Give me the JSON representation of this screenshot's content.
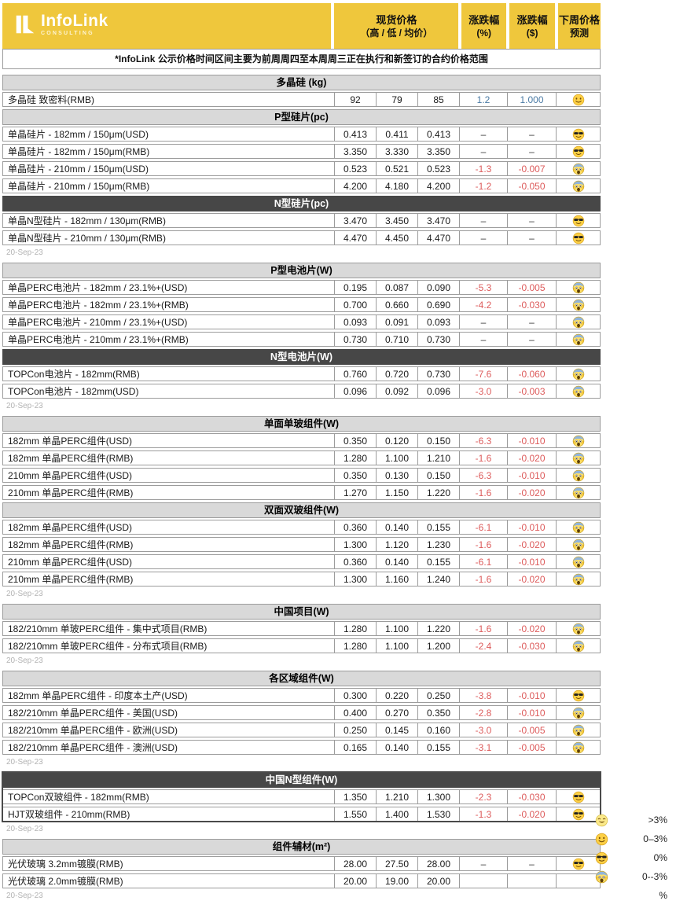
{
  "colors": {
    "brand_yellow": "#EFC73C",
    "light_header": "#D9D9D9",
    "dark_header": "#474747",
    "border": "#9C9C9C",
    "positive_blue": "#4A7AA4",
    "negative_red": "#DD5C5C",
    "date_gray": "#B3B3B3"
  },
  "header": {
    "logo": {
      "brand": "InfoLink",
      "sub": "CONSULTING"
    },
    "columns": {
      "spot_l1": "现货价格",
      "spot_l2": "（高 / 低 / 均价）",
      "pct_l1": "涨跌幅",
      "pct_l2": "(%)",
      "usd_l1": "涨跌幅",
      "usd_l2": "($)",
      "forecast_l1": "下周价格",
      "forecast_l2": "预测"
    },
    "note": "*InfoLink 公示价格时间区间主要为前周周四至本周周三正在执行和新签订的合约价格范围"
  },
  "groups": [
    {
      "date": "20-Sep-23",
      "sections": [
        {
          "title": "多晶硅 (kg)",
          "style": "light",
          "rows": [
            {
              "label": "多晶硅 致密料(RMB)",
              "high": "92",
              "low": "79",
              "avg": "85",
              "pct": "1.2",
              "usd": "1.000",
              "forecast": "smile"
            }
          ]
        },
        {
          "title": "P型硅片(pc)",
          "style": "light",
          "rows": [
            {
              "label": "单晶硅片 - 182mm / 150μm(USD)",
              "high": "0.413",
              "low": "0.411",
              "avg": "0.413",
              "pct": "–",
              "usd": "–",
              "forecast": "shades"
            },
            {
              "label": "单晶硅片 - 182mm / 150μm(RMB)",
              "high": "3.350",
              "low": "3.330",
              "avg": "3.350",
              "pct": "–",
              "usd": "–",
              "forecast": "shades"
            },
            {
              "label": "单晶硅片 - 210mm / 150μm(USD)",
              "high": "0.523",
              "low": "0.521",
              "avg": "0.523",
              "pct": "-1.3",
              "usd": "-0.007",
              "forecast": "scream"
            },
            {
              "label": "单晶硅片 - 210mm / 150μm(RMB)",
              "high": "4.200",
              "low": "4.180",
              "avg": "4.200",
              "pct": "-1.2",
              "usd": "-0.050",
              "forecast": "scream"
            }
          ]
        },
        {
          "title": "N型硅片(pc)",
          "style": "dark",
          "rows": [
            {
              "label": "单晶N型硅片 - 182mm / 130μm(RMB)",
              "high": "3.470",
              "low": "3.450",
              "avg": "3.470",
              "pct": "–",
              "usd": "–",
              "forecast": "shades"
            },
            {
              "label": "单晶N型硅片 - 210mm / 130μm(RMB)",
              "high": "4.470",
              "low": "4.450",
              "avg": "4.470",
              "pct": "–",
              "usd": "–",
              "forecast": "shades"
            }
          ]
        }
      ]
    },
    {
      "date": "20-Sep-23",
      "sections": [
        {
          "title": "P型电池片(W)",
          "style": "light",
          "rows": [
            {
              "label": "单晶PERC电池片 - 182mm / 23.1%+(USD)",
              "high": "0.195",
              "low": "0.087",
              "avg": "0.090",
              "pct": "-5.3",
              "usd": "-0.005",
              "forecast": "scream"
            },
            {
              "label": "单晶PERC电池片 - 182mm / 23.1%+(RMB)",
              "high": "0.700",
              "low": "0.660",
              "avg": "0.690",
              "pct": "-4.2",
              "usd": "-0.030",
              "forecast": "scream"
            },
            {
              "label": "单晶PERC电池片 - 210mm / 23.1%+(USD)",
              "high": "0.093",
              "low": "0.091",
              "avg": "0.093",
              "pct": "–",
              "usd": "–",
              "forecast": "scream"
            },
            {
              "label": "单晶PERC电池片 - 210mm / 23.1%+(RMB)",
              "high": "0.730",
              "low": "0.710",
              "avg": "0.730",
              "pct": "–",
              "usd": "–",
              "forecast": "scream"
            }
          ]
        },
        {
          "title": "N型电池片(W)",
          "style": "dark",
          "rows": [
            {
              "label": "TOPCon电池片 - 182mm(RMB)",
              "high": "0.760",
              "low": "0.720",
              "avg": "0.730",
              "pct": "-7.6",
              "usd": "-0.060",
              "forecast": "scream"
            },
            {
              "label": "TOPCon电池片 - 182mm(USD)",
              "high": "0.096",
              "low": "0.092",
              "avg": "0.096",
              "pct": "-3.0",
              "usd": "-0.003",
              "forecast": "scream"
            }
          ]
        }
      ]
    },
    {
      "date": "20-Sep-23",
      "sections": [
        {
          "title": "单面单玻组件(W)",
          "style": "light",
          "rows": [
            {
              "label": "182mm 单晶PERC组件(USD)",
              "high": "0.350",
              "low": "0.120",
              "avg": "0.150",
              "pct": "-6.3",
              "usd": "-0.010",
              "forecast": "scream"
            },
            {
              "label": "182mm 单晶PERC组件(RMB)",
              "high": "1.280",
              "low": "1.100",
              "avg": "1.210",
              "pct": "-1.6",
              "usd": "-0.020",
              "forecast": "scream"
            },
            {
              "label": "210mm 单晶PERC组件(USD)",
              "high": "0.350",
              "low": "0.130",
              "avg": "0.150",
              "pct": "-6.3",
              "usd": "-0.010",
              "forecast": "scream"
            },
            {
              "label": "210mm 单晶PERC组件(RMB)",
              "high": "1.270",
              "low": "1.150",
              "avg": "1.220",
              "pct": "-1.6",
              "usd": "-0.020",
              "forecast": "scream"
            }
          ]
        },
        {
          "title": "双面双玻组件(W)",
          "style": "light",
          "rows": [
            {
              "label": "182mm 单晶PERC组件(USD)",
              "high": "0.360",
              "low": "0.140",
              "avg": "0.155",
              "pct": "-6.1",
              "usd": "-0.010",
              "forecast": "scream"
            },
            {
              "label": "182mm 单晶PERC组件(RMB)",
              "high": "1.300",
              "low": "1.120",
              "avg": "1.230",
              "pct": "-1.6",
              "usd": "-0.020",
              "forecast": "scream"
            },
            {
              "label": "210mm 单晶PERC组件(USD)",
              "high": "0.360",
              "low": "0.140",
              "avg": "0.155",
              "pct": "-6.1",
              "usd": "-0.010",
              "forecast": "scream"
            },
            {
              "label": "210mm 单晶PERC组件(RMB)",
              "high": "1.300",
              "low": "1.160",
              "avg": "1.240",
              "pct": "-1.6",
              "usd": "-0.020",
              "forecast": "scream"
            }
          ]
        }
      ]
    },
    {
      "date": "20-Sep-23",
      "sections": [
        {
          "title": "中国项目(W)",
          "style": "light",
          "rows": [
            {
              "label": "182/210mm 单玻PERC组件 - 集中式项目(RMB)",
              "high": "1.280",
              "low": "1.100",
              "avg": "1.220",
              "pct": "-1.6",
              "usd": "-0.020",
              "forecast": "scream"
            },
            {
              "label": "182/210mm 单玻PERC组件 - 分布式项目(RMB)",
              "high": "1.280",
              "low": "1.100",
              "avg": "1.200",
              "pct": "-2.4",
              "usd": "-0.030",
              "forecast": "scream"
            }
          ]
        }
      ]
    },
    {
      "date": "20-Sep-23",
      "sections": [
        {
          "title": "各区域组件(W)",
          "style": "light",
          "rows": [
            {
              "label": "182mm 单晶PERC组件 - 印度本土产(USD)",
              "high": "0.300",
              "low": "0.220",
              "avg": "0.250",
              "pct": "-3.8",
              "usd": "-0.010",
              "forecast": "shades"
            },
            {
              "label": "182/210mm 单晶PERC组件 - 美国(USD)",
              "high": "0.400",
              "low": "0.270",
              "avg": "0.350",
              "pct": "-2.8",
              "usd": "-0.010",
              "forecast": "scream"
            },
            {
              "label": "182/210mm 单晶PERC组件 - 欧洲(USD)",
              "high": "0.250",
              "low": "0.145",
              "avg": "0.160",
              "pct": "-3.0",
              "usd": "-0.005",
              "forecast": "scream"
            },
            {
              "label": "182/210mm 单晶PERC组件 - 澳洲(USD)",
              "high": "0.165",
              "low": "0.140",
              "avg": "0.155",
              "pct": "-3.1",
              "usd": "-0.005",
              "forecast": "scream"
            }
          ]
        }
      ]
    },
    {
      "date": "20-Sep-23",
      "emphasis": true,
      "sections": [
        {
          "title": "中国N型组件(W)",
          "style": "dark",
          "rows": [
            {
              "label": "TOPCon双玻组件 - 182mm(RMB)",
              "high": "1.350",
              "low": "1.210",
              "avg": "1.300",
              "pct": "-2.3",
              "usd": "-0.030",
              "forecast": "shades"
            },
            {
              "label": "HJT双玻组件 - 210mm(RMB)",
              "high": "1.550",
              "low": "1.400",
              "avg": "1.530",
              "pct": "-1.3",
              "usd": "-0.020",
              "forecast": "shades"
            }
          ]
        }
      ]
    },
    {
      "date": "20-Sep-23",
      "sections": [
        {
          "title": "组件辅材(m²)",
          "style": "light",
          "rows": [
            {
              "label": "光伏玻璃 3.2mm镀膜(RMB)",
              "high": "28.00",
              "low": "27.50",
              "avg": "28.00",
              "pct": "–",
              "usd": "–",
              "forecast": "shades"
            },
            {
              "label": "光伏玻璃 2.0mm镀膜(RMB)",
              "high": "20.00",
              "low": "19.00",
              "avg": "20.00",
              "pct": "",
              "usd": "",
              "forecast": "none"
            }
          ]
        }
      ]
    }
  ],
  "legend": {
    "items": [
      {
        "emoji": "grin",
        "label": ">3%"
      },
      {
        "emoji": "smile",
        "label": "0–3%"
      },
      {
        "emoji": "shades",
        "label": "0%"
      },
      {
        "emoji": "scream",
        "label": "0--3%"
      },
      {
        "emoji": "none",
        "label": "%"
      }
    ]
  }
}
